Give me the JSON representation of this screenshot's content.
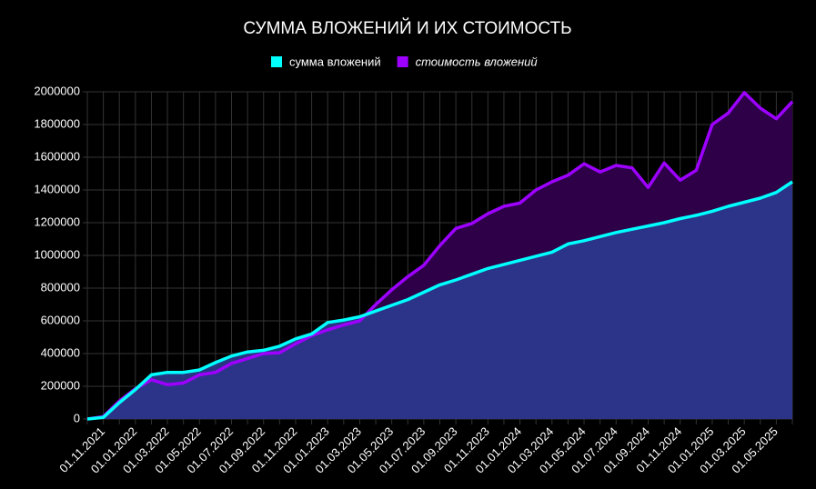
{
  "chart_data": {
    "type": "area",
    "title": "СУММА ВЛОЖЕНИЙ И ИХ СТОИМОСТЬ",
    "categories": [
      null,
      "01.11.2021",
      null,
      "01.01.2022",
      null,
      "01.03.2022",
      null,
      "01.05.2022",
      null,
      "01.07.2022",
      null,
      "01.09.2022",
      null,
      "01.11.2022",
      null,
      "01.01.2023",
      null,
      "01.03.2023",
      null,
      "01.05.2023",
      null,
      "01.07.2023",
      null,
      "01.09.2023",
      null,
      "01.11.2023",
      null,
      "01.01.2024",
      null,
      "01.03.2024",
      null,
      "01.05.2024",
      null,
      "01.07.2024",
      null,
      "01.09.2024",
      null,
      "01.11.2024",
      null,
      "01.01.2025",
      null,
      "01.03.2025",
      null,
      "01.05.2025",
      null
    ],
    "series": [
      {
        "name": "сумма вложений",
        "color": "#00ffff",
        "fill": "#2b3a8f",
        "values": [
          0,
          10000,
          100000,
          180000,
          270000,
          285000,
          285000,
          300000,
          345000,
          385000,
          410000,
          420000,
          445000,
          490000,
          520000,
          590000,
          605000,
          625000,
          660000,
          695000,
          730000,
          775000,
          820000,
          850000,
          885000,
          920000,
          945000,
          970000,
          995000,
          1020000,
          1070000,
          1090000,
          1115000,
          1140000,
          1160000,
          1180000,
          1200000,
          1225000,
          1245000,
          1270000,
          1300000,
          1325000,
          1350000,
          1385000,
          1450000
        ]
      },
      {
        "name": "стоимость вложений",
        "color": "#9d00ff",
        "fill": "#2d0048",
        "values": [
          0,
          15000,
          110000,
          185000,
          240000,
          210000,
          220000,
          270000,
          285000,
          340000,
          370000,
          400000,
          405000,
          460000,
          510000,
          545000,
          575000,
          600000,
          700000,
          790000,
          870000,
          940000,
          1060000,
          1165000,
          1195000,
          1255000,
          1300000,
          1320000,
          1400000,
          1450000,
          1490000,
          1560000,
          1510000,
          1550000,
          1535000,
          1415000,
          1565000,
          1460000,
          1520000,
          1800000,
          1870000,
          1995000,
          1900000,
          1835000,
          1940000
        ]
      }
    ],
    "ylim": [
      0,
      2000000
    ],
    "yticks": [
      0,
      200000,
      400000,
      600000,
      800000,
      1000000,
      1200000,
      1400000,
      1600000,
      1800000,
      2000000
    ],
    "grid": true
  }
}
